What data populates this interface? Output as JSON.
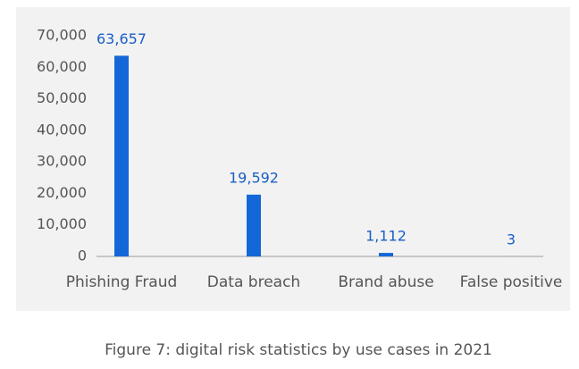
{
  "chart_data": {
    "type": "bar",
    "caption": "Figure 7: digital risk statistics by use cases in 2021",
    "categories": [
      "Phishing Fraud",
      "Data breach",
      "Brand abuse",
      "False positive"
    ],
    "values": [
      63657,
      19592,
      1112,
      3
    ],
    "value_labels": [
      "63,657",
      "19,592",
      "1,112",
      "3"
    ],
    "color": "#1467d8",
    "label_color": "#1a5fc4",
    "ylim": [
      0,
      70000
    ],
    "yticks": [
      0,
      {
        "value": 10000,
        "label": "10,000"
      },
      {
        "value": 20000,
        "label": "20,000"
      },
      {
        "value": 30000,
        "label": "30,000"
      },
      {
        "value": 40000,
        "label": "40,000"
      },
      {
        "value": 50000,
        "label": "50,000"
      },
      {
        "value": 60000,
        "label": "60,000"
      },
      {
        "value": 70000,
        "label": "70,000"
      }
    ],
    "grid": false
  }
}
